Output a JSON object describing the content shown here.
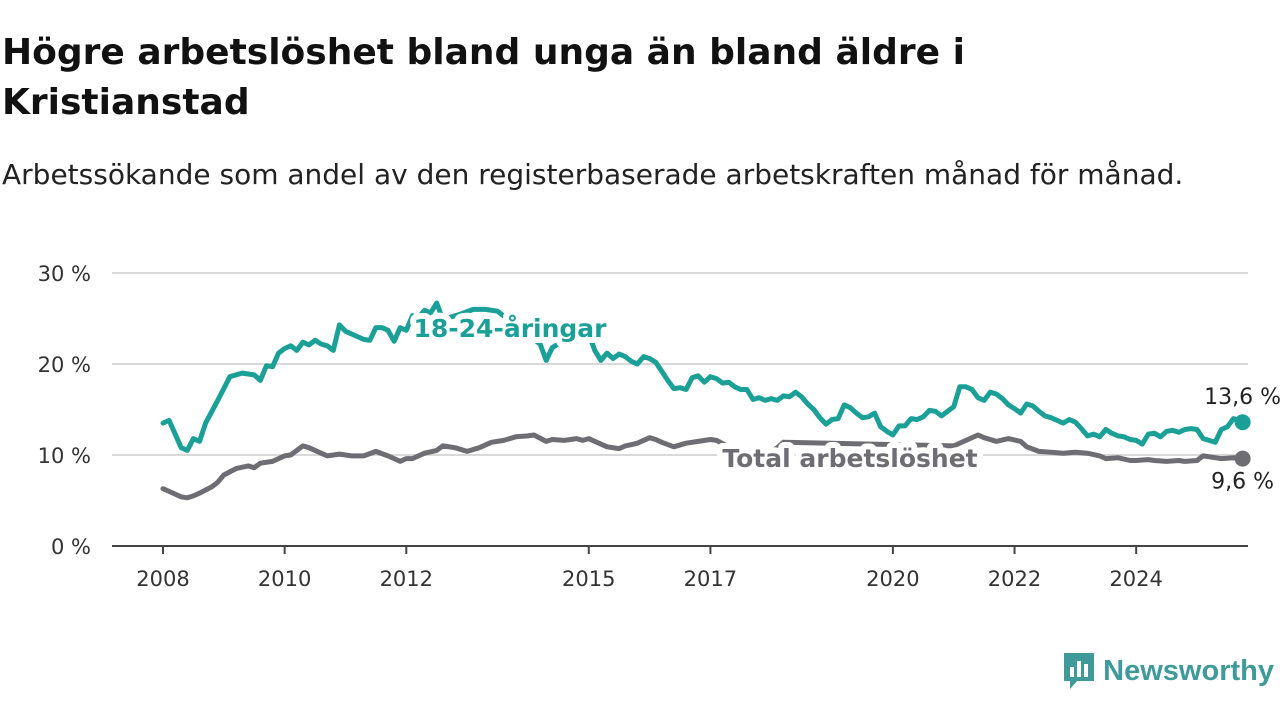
{
  "header": {
    "title": "Högre arbetslöshet bland unga än bland äldre i Kristianstad",
    "subtitle": "Arbetssökande som andel av den registerbaserade arbetskraften månad för månad."
  },
  "brand": {
    "name": "Newsworthy",
    "color": "#3f9a99",
    "icon": "bar-chart-bubble-icon"
  },
  "chart_data": {
    "type": "line",
    "ylim": [
      0,
      30
    ],
    "xlim": [
      2008.0,
      2025.0
    ],
    "yticks": [
      {
        "value": 0,
        "label": "0 %"
      },
      {
        "value": 10,
        "label": "10 %"
      },
      {
        "value": 20,
        "label": "20 %"
      },
      {
        "value": 30,
        "label": "30 %"
      }
    ],
    "xticks": [
      {
        "value": 2008,
        "label": "2008"
      },
      {
        "value": 2010,
        "label": "2010"
      },
      {
        "value": 2012,
        "label": "2012"
      },
      {
        "value": 2015,
        "label": "2015"
      },
      {
        "value": 2017,
        "label": "2017"
      },
      {
        "value": 2020,
        "label": "2020"
      },
      {
        "value": 2022,
        "label": "2022"
      },
      {
        "value": 2024,
        "label": "2024"
      }
    ],
    "grid": true,
    "series": [
      {
        "name": "18-24-åringar",
        "color": "#1ba098",
        "end_label": "13,6 %",
        "points": [
          [
            2008.0,
            13.5
          ],
          [
            2008.1,
            13.8
          ],
          [
            2008.3,
            10.8
          ],
          [
            2008.4,
            10.5
          ],
          [
            2008.5,
            11.8
          ],
          [
            2008.6,
            11.5
          ],
          [
            2008.7,
            13.5
          ],
          [
            2008.9,
            16.0
          ],
          [
            2009.0,
            17.3
          ],
          [
            2009.1,
            18.6
          ],
          [
            2009.3,
            19.0
          ],
          [
            2009.5,
            18.8
          ],
          [
            2009.6,
            18.2
          ],
          [
            2009.7,
            19.8
          ],
          [
            2009.8,
            19.7
          ],
          [
            2009.9,
            21.2
          ],
          [
            2010.0,
            21.7
          ],
          [
            2010.1,
            22.0
          ],
          [
            2010.2,
            21.5
          ],
          [
            2010.3,
            22.4
          ],
          [
            2010.4,
            22.1
          ],
          [
            2010.5,
            22.6
          ],
          [
            2010.6,
            22.2
          ],
          [
            2010.7,
            22.0
          ],
          [
            2010.8,
            21.5
          ],
          [
            2010.9,
            24.3
          ],
          [
            2011.0,
            23.6
          ],
          [
            2011.1,
            23.3
          ],
          [
            2011.3,
            22.7
          ],
          [
            2011.4,
            22.6
          ],
          [
            2011.5,
            24.0
          ],
          [
            2011.6,
            24.0
          ],
          [
            2011.7,
            23.7
          ],
          [
            2011.8,
            22.5
          ],
          [
            2011.9,
            24.0
          ],
          [
            2012.0,
            23.7
          ],
          [
            2012.1,
            25.3
          ],
          [
            2012.2,
            25.1
          ],
          [
            2012.3,
            25.9
          ],
          [
            2012.4,
            25.6
          ],
          [
            2012.5,
            26.7
          ],
          [
            2012.6,
            24.9
          ],
          [
            2012.9,
            25.5
          ],
          [
            2013.1,
            26.0
          ],
          [
            2013.3,
            26.0
          ],
          [
            2013.5,
            25.8
          ],
          [
            2014.1,
            22.7
          ],
          [
            2014.2,
            22.2
          ],
          [
            2014.3,
            20.4
          ],
          [
            2014.4,
            21.8
          ],
          [
            2014.9,
            23.9
          ],
          [
            2015.0,
            23.3
          ],
          [
            2015.1,
            21.5
          ],
          [
            2015.2,
            20.4
          ],
          [
            2015.3,
            21.2
          ],
          [
            2015.4,
            20.6
          ],
          [
            2015.5,
            21.1
          ],
          [
            2015.6,
            20.8
          ],
          [
            2015.7,
            20.3
          ],
          [
            2015.8,
            20.0
          ],
          [
            2015.9,
            20.8
          ],
          [
            2016.0,
            20.6
          ],
          [
            2016.1,
            20.2
          ],
          [
            2016.2,
            19.2
          ],
          [
            2016.3,
            18.2
          ],
          [
            2016.4,
            17.3
          ],
          [
            2016.5,
            17.4
          ],
          [
            2016.6,
            17.2
          ],
          [
            2016.7,
            18.5
          ],
          [
            2016.8,
            18.7
          ],
          [
            2016.9,
            18.0
          ],
          [
            2017.0,
            18.6
          ],
          [
            2017.1,
            18.4
          ],
          [
            2017.2,
            17.9
          ],
          [
            2017.3,
            18.0
          ],
          [
            2017.4,
            17.5
          ],
          [
            2017.5,
            17.2
          ],
          [
            2017.6,
            17.2
          ],
          [
            2017.7,
            16.1
          ],
          [
            2017.8,
            16.3
          ],
          [
            2017.9,
            16.0
          ],
          [
            2018.0,
            16.2
          ],
          [
            2018.1,
            16.0
          ],
          [
            2018.2,
            16.5
          ],
          [
            2018.3,
            16.4
          ],
          [
            2018.4,
            16.9
          ],
          [
            2018.5,
            16.4
          ],
          [
            2018.6,
            15.6
          ],
          [
            2018.7,
            15.0
          ],
          [
            2018.8,
            14.1
          ],
          [
            2018.9,
            13.4
          ],
          [
            2019.0,
            13.9
          ],
          [
            2019.1,
            14.0
          ],
          [
            2019.2,
            15.5
          ],
          [
            2019.3,
            15.2
          ],
          [
            2019.4,
            14.6
          ],
          [
            2019.5,
            14.1
          ],
          [
            2019.6,
            14.2
          ],
          [
            2019.7,
            14.6
          ],
          [
            2019.8,
            13.1
          ],
          [
            2019.9,
            12.6
          ],
          [
            2020.0,
            12.2
          ],
          [
            2020.1,
            13.2
          ],
          [
            2020.2,
            13.2
          ],
          [
            2020.3,
            14.0
          ],
          [
            2020.4,
            13.9
          ],
          [
            2020.5,
            14.2
          ],
          [
            2020.6,
            14.9
          ],
          [
            2020.7,
            14.8
          ],
          [
            2020.8,
            14.3
          ],
          [
            2020.9,
            14.8
          ],
          [
            2021.0,
            15.3
          ],
          [
            2021.1,
            17.5
          ],
          [
            2021.2,
            17.5
          ],
          [
            2021.3,
            17.2
          ],
          [
            2021.4,
            16.3
          ],
          [
            2021.5,
            16.0
          ],
          [
            2021.6,
            16.9
          ],
          [
            2021.7,
            16.7
          ],
          [
            2021.8,
            16.2
          ],
          [
            2021.9,
            15.5
          ],
          [
            2022.0,
            15.1
          ],
          [
            2022.1,
            14.6
          ],
          [
            2022.2,
            15.6
          ],
          [
            2022.3,
            15.4
          ],
          [
            2022.4,
            14.8
          ],
          [
            2022.5,
            14.3
          ],
          [
            2022.6,
            14.1
          ],
          [
            2022.7,
            13.8
          ],
          [
            2022.8,
            13.5
          ],
          [
            2022.9,
            13.9
          ],
          [
            2023.0,
            13.6
          ],
          [
            2023.1,
            12.9
          ],
          [
            2023.2,
            12.1
          ],
          [
            2023.3,
            12.3
          ],
          [
            2023.4,
            12.0
          ],
          [
            2023.5,
            12.8
          ],
          [
            2023.6,
            12.4
          ],
          [
            2023.7,
            12.1
          ],
          [
            2023.8,
            12.0
          ],
          [
            2023.9,
            11.7
          ],
          [
            2024.0,
            11.6
          ],
          [
            2024.1,
            11.2
          ],
          [
            2024.2,
            12.3
          ],
          [
            2024.3,
            12.4
          ],
          [
            2024.4,
            12.0
          ],
          [
            2024.5,
            12.6
          ],
          [
            2024.6,
            12.7
          ],
          [
            2024.7,
            12.5
          ],
          [
            2024.8,
            12.8
          ],
          [
            2024.9,
            12.9
          ],
          [
            2025.0,
            12.8
          ],
          [
            2025.1,
            11.8
          ],
          [
            2025.2,
            11.6
          ],
          [
            2025.3,
            11.4
          ],
          [
            2025.4,
            12.8
          ],
          [
            2025.5,
            13.1
          ],
          [
            2025.6,
            14.0
          ],
          [
            2025.7,
            13.8
          ],
          [
            2025.75,
            13.6
          ]
        ]
      },
      {
        "name": "Total arbetslöshet",
        "color": "#6e6d74",
        "end_label": "9,6 %",
        "points": [
          [
            2008.0,
            6.3
          ],
          [
            2008.1,
            6.0
          ],
          [
            2008.2,
            5.7
          ],
          [
            2008.3,
            5.4
          ],
          [
            2008.4,
            5.3
          ],
          [
            2008.5,
            5.5
          ],
          [
            2008.6,
            5.8
          ],
          [
            2008.8,
            6.5
          ],
          [
            2008.9,
            7.0
          ],
          [
            2009.0,
            7.8
          ],
          [
            2009.2,
            8.5
          ],
          [
            2009.4,
            8.8
          ],
          [
            2009.5,
            8.6
          ],
          [
            2009.6,
            9.1
          ],
          [
            2009.8,
            9.3
          ],
          [
            2010.0,
            9.9
          ],
          [
            2010.1,
            10.0
          ],
          [
            2010.3,
            11.0
          ],
          [
            2010.4,
            10.8
          ],
          [
            2010.6,
            10.2
          ],
          [
            2010.7,
            9.9
          ],
          [
            2010.9,
            10.1
          ],
          [
            2011.1,
            9.9
          ],
          [
            2011.3,
            9.9
          ],
          [
            2011.5,
            10.4
          ],
          [
            2011.7,
            9.9
          ],
          [
            2011.9,
            9.3
          ],
          [
            2012.0,
            9.6
          ],
          [
            2012.1,
            9.6
          ],
          [
            2012.3,
            10.2
          ],
          [
            2012.5,
            10.5
          ],
          [
            2012.6,
            11.0
          ],
          [
            2012.8,
            10.8
          ],
          [
            2013.0,
            10.4
          ],
          [
            2013.2,
            10.8
          ],
          [
            2013.4,
            11.4
          ],
          [
            2013.6,
            11.6
          ],
          [
            2013.8,
            12.0
          ],
          [
            2014.0,
            12.1
          ],
          [
            2014.1,
            12.2
          ],
          [
            2014.3,
            11.5
          ],
          [
            2014.4,
            11.7
          ],
          [
            2014.6,
            11.6
          ],
          [
            2014.8,
            11.8
          ],
          [
            2014.9,
            11.6
          ],
          [
            2015.0,
            11.8
          ],
          [
            2015.1,
            11.5
          ],
          [
            2015.3,
            10.9
          ],
          [
            2015.5,
            10.7
          ],
          [
            2015.6,
            11.0
          ],
          [
            2015.8,
            11.3
          ],
          [
            2016.0,
            11.9
          ],
          [
            2016.1,
            11.7
          ],
          [
            2016.2,
            11.4
          ],
          [
            2016.4,
            10.9
          ],
          [
            2016.6,
            11.3
          ],
          [
            2016.8,
            11.5
          ],
          [
            2017.0,
            11.7
          ],
          [
            2017.1,
            11.6
          ],
          [
            2017.3,
            10.9
          ],
          [
            2017.4,
            10.3
          ],
          [
            2017.6,
            10.2
          ],
          [
            2017.8,
            10.4
          ],
          [
            2018.0,
            10.4
          ],
          [
            2018.1,
            10.8
          ],
          [
            2018.2,
            11.4
          ],
          [
            2021.0,
            11.0
          ],
          [
            2021.4,
            12.2
          ],
          [
            2021.5,
            11.9
          ],
          [
            2021.7,
            11.5
          ],
          [
            2021.9,
            11.8
          ],
          [
            2022.1,
            11.5
          ],
          [
            2022.2,
            10.9
          ],
          [
            2022.4,
            10.4
          ],
          [
            2022.6,
            10.3
          ],
          [
            2022.8,
            10.2
          ],
          [
            2023.0,
            10.3
          ],
          [
            2023.2,
            10.2
          ],
          [
            2023.4,
            9.9
          ],
          [
            2023.5,
            9.6
          ],
          [
            2023.7,
            9.7
          ],
          [
            2023.9,
            9.4
          ],
          [
            2024.0,
            9.4
          ],
          [
            2024.2,
            9.5
          ],
          [
            2024.3,
            9.4
          ],
          [
            2024.5,
            9.3
          ],
          [
            2024.7,
            9.4
          ],
          [
            2024.8,
            9.3
          ],
          [
            2025.0,
            9.4
          ],
          [
            2025.1,
            9.9
          ],
          [
            2025.3,
            9.7
          ],
          [
            2025.4,
            9.6
          ],
          [
            2025.6,
            9.7
          ],
          [
            2025.75,
            9.6
          ]
        ]
      }
    ]
  }
}
